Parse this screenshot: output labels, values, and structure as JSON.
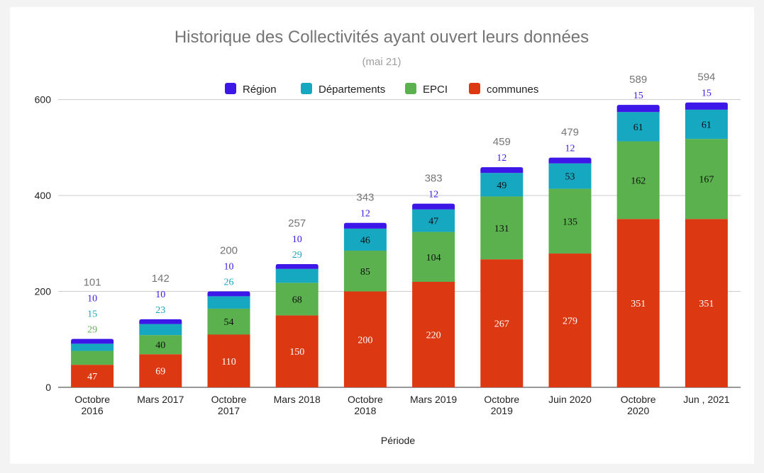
{
  "chart_data": {
    "type": "bar",
    "stacked": true,
    "title": "Historique des Collectivités ayant ouvert leurs données",
    "subtitle": "(mai 21)",
    "xlabel": "Période",
    "ylabel": "",
    "ylim": [
      0,
      660
    ],
    "yticks": [
      0,
      200,
      400,
      600
    ],
    "grid": true,
    "legend_position": "top",
    "categories": [
      [
        "Octobre",
        "2016"
      ],
      [
        "Mars 2017"
      ],
      [
        "Octobre",
        "2017"
      ],
      [
        "Mars 2018"
      ],
      [
        "Octobre",
        "2018"
      ],
      [
        "Mars 2019"
      ],
      [
        "Octobre",
        "2019"
      ],
      [
        "Juin 2020"
      ],
      [
        "Octobre",
        "2020"
      ],
      [
        "Jun , 2021"
      ]
    ],
    "series": [
      {
        "name": "communes",
        "color": "#dc3912",
        "label_color": "#ffffff",
        "values": [
          47,
          69,
          110,
          150,
          200,
          220,
          267,
          279,
          351,
          351
        ]
      },
      {
        "name": "EPCI",
        "color": "#5ab14d",
        "label_color": "#111111",
        "values": [
          29,
          40,
          54,
          68,
          85,
          104,
          131,
          135,
          162,
          167
        ]
      },
      {
        "name": "Départements",
        "color": "#16a7c1",
        "label_color": "#111111",
        "values": [
          15,
          23,
          26,
          29,
          46,
          47,
          49,
          53,
          61,
          61
        ]
      },
      {
        "name": "Région",
        "color": "#3d16e8",
        "label_color": "#3d16e8",
        "values": [
          10,
          10,
          10,
          10,
          12,
          12,
          12,
          12,
          15,
          15
        ]
      }
    ],
    "legend_order": [
      "Région",
      "Départements",
      "EPCI",
      "communes"
    ],
    "totals": [
      101,
      142,
      200,
      257,
      343,
      383,
      459,
      479,
      589,
      594
    ],
    "label_colors_above": {
      "EPCI": "#5ab14d",
      "Départements": "#16a7c1",
      "Région": "#3d16e8"
    }
  }
}
